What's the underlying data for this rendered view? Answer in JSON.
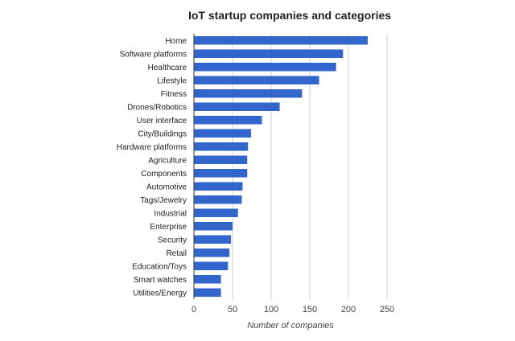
{
  "chart_data": {
    "type": "bar",
    "orientation": "horizontal",
    "title": "IoT startup companies and categories",
    "xlabel": "Number of companies",
    "ylabel": "",
    "categories": [
      "Home",
      "Software platforms",
      "Healthcare",
      "Lifestyle",
      "Fitness",
      "Drones/Robotics",
      "User interface",
      "City/Buildings",
      "Hardware platforms",
      "Agriculture",
      "Components",
      "Automotive",
      "Tags/Jewelry",
      "Industrial",
      "Enterprise",
      "Security",
      "Retail",
      "Education/Toys",
      "Smart watches",
      "Utilities/Energy"
    ],
    "values": [
      225,
      193,
      184,
      162,
      140,
      111,
      88,
      74,
      70,
      69,
      69,
      63,
      62,
      57,
      50,
      48,
      46,
      44,
      35,
      35
    ],
    "xlim": [
      0,
      250
    ],
    "xticks": [
      0,
      50,
      100,
      150,
      200,
      250
    ],
    "grid": true,
    "legend": "none",
    "colors": {
      "bar": "#3366cc",
      "grid": "#cccccc",
      "axis": "#333333",
      "text": "#222222",
      "tick_text": "#444444"
    }
  }
}
